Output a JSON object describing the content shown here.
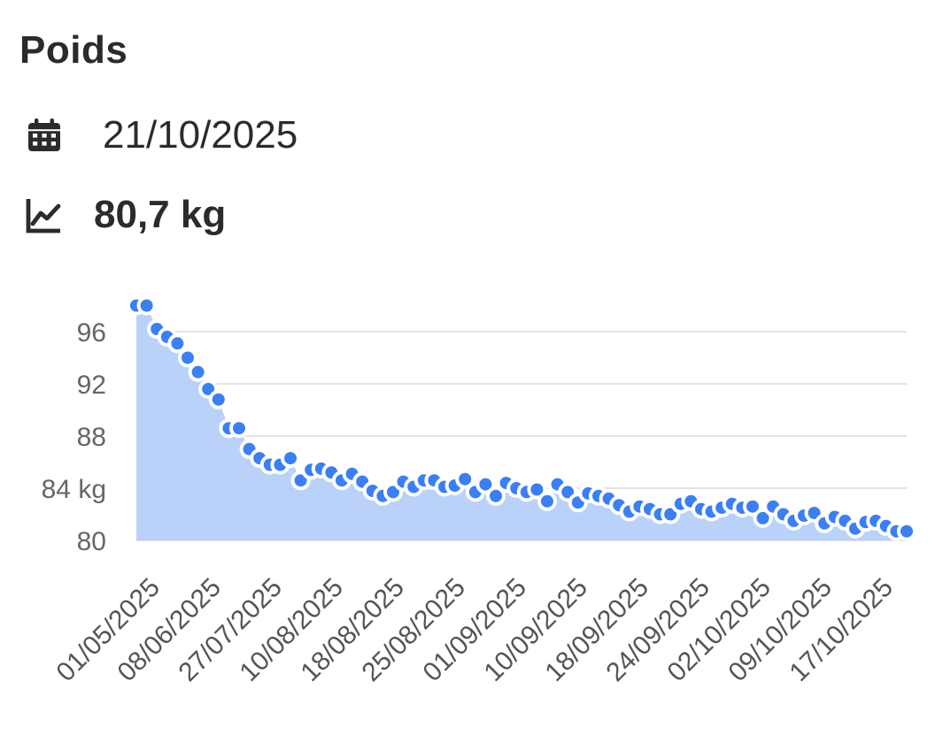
{
  "header": {
    "title": "Poids",
    "date": "21/10/2025",
    "weight": "80,7 kg",
    "calendar_icon": "calendar-icon",
    "trend_icon": "trend-line-icon"
  },
  "colors": {
    "point": "#3b7ff2",
    "area": "#b3cdfa",
    "grid": "#e3e3e3",
    "text": "#2b2b2b"
  },
  "chart_data": {
    "type": "area",
    "title": "",
    "xlabel": "",
    "ylabel": "",
    "ylim": [
      80,
      98
    ],
    "y_ticks": [
      {
        "value": 80,
        "label": "80"
      },
      {
        "value": 84,
        "label": "84 kg"
      },
      {
        "value": 88,
        "label": "88"
      },
      {
        "value": 92,
        "label": "92"
      },
      {
        "value": 96,
        "label": "96"
      }
    ],
    "x_tick_labels": [
      "01/05/2025",
      "08/06/2025",
      "27/07/2025",
      "10/08/2025",
      "18/08/2025",
      "25/08/2025",
      "01/09/2025",
      "10/09/2025",
      "18/09/2025",
      "24/09/2025",
      "02/10/2025",
      "09/10/2025",
      "17/10/2025"
    ],
    "grid": true,
    "legend": "none",
    "values": [
      98.0,
      98.0,
      96.2,
      95.6,
      95.1,
      94.0,
      92.9,
      91.6,
      90.8,
      88.6,
      88.6,
      87.0,
      86.3,
      85.8,
      85.8,
      86.3,
      84.6,
      85.4,
      85.5,
      85.2,
      84.6,
      85.1,
      84.5,
      83.8,
      83.4,
      83.7,
      84.5,
      84.1,
      84.6,
      84.6,
      84.1,
      84.2,
      84.7,
      83.7,
      84.3,
      83.4,
      84.4,
      84.0,
      83.7,
      83.9,
      83.0,
      84.3,
      83.7,
      82.9,
      83.6,
      83.4,
      83.2,
      82.7,
      82.2,
      82.6,
      82.4,
      82.0,
      82.0,
      82.8,
      83.0,
      82.4,
      82.2,
      82.5,
      82.8,
      82.5,
      82.6,
      81.7,
      82.6,
      82.0,
      81.5,
      81.9,
      82.1,
      81.3,
      81.8,
      81.5,
      80.9,
      81.4,
      81.5,
      81.1,
      80.7,
      80.7
    ]
  }
}
